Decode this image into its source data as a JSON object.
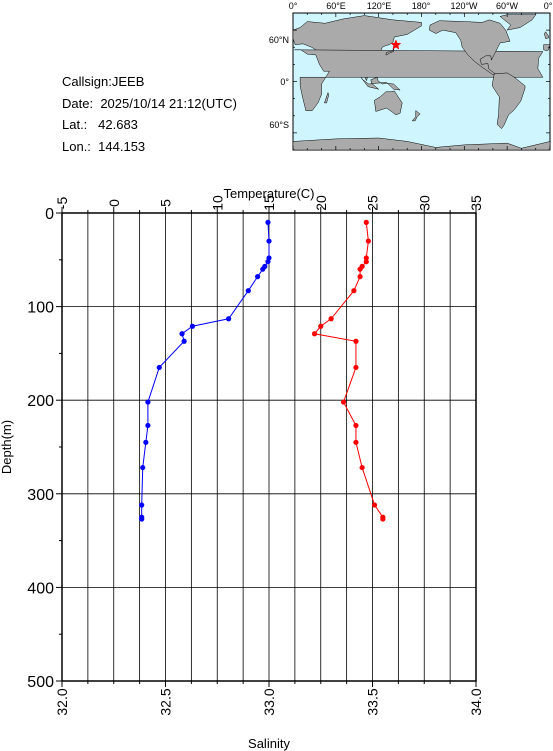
{
  "station": {
    "callsign_label": "Callsign:",
    "callsign": "JEEB",
    "date_label": "Date:",
    "date": "2025/10/14 21:12(UTC)",
    "lat_label": "Lat.:",
    "lat": "42.683",
    "lon_label": "Lon.:",
    "lon": "144.153"
  },
  "map": {
    "lon_labels": [
      "0°",
      "60°E",
      "120°E",
      "180°",
      "120°W",
      "60°W",
      "0°"
    ],
    "lat_labels": [
      "60°N",
      "0°",
      "60°S"
    ],
    "marker_lon": 144.153,
    "marker_lat": 42.683,
    "marker_color": "#ff0000",
    "ocean_color": "#cff5ff",
    "land_color": "#aaaaaa"
  },
  "chart_data": {
    "type": "line",
    "ylabel": "Depth(m)",
    "ylim": [
      0,
      500
    ],
    "y_ticks": [
      "0",
      "100",
      "200",
      "300",
      "400",
      "500"
    ],
    "grid": true,
    "temperature_axis": {
      "label": "Temperature(C)",
      "range": [
        -5,
        35
      ],
      "ticks": [
        "-5",
        "0",
        "5",
        "10",
        "15",
        "20",
        "25",
        "30",
        "35"
      ]
    },
    "salinity_axis": {
      "label": "Salinity",
      "range": [
        32.0,
        34.0
      ],
      "ticks": [
        "32.0",
        "32.5",
        "33.0",
        "33.5",
        "34.0"
      ]
    },
    "series": [
      {
        "color": "#0000ff",
        "axis": "temperature",
        "points": [
          [
            14.9,
            10
          ],
          [
            15.0,
            30
          ],
          [
            15.0,
            48
          ],
          [
            14.9,
            52
          ],
          [
            14.6,
            57
          ],
          [
            14.4,
            60
          ],
          [
            13.9,
            68
          ],
          [
            13.0,
            83
          ],
          [
            11.1,
            113
          ],
          [
            7.6,
            121
          ],
          [
            6.6,
            129
          ],
          [
            6.8,
            137
          ],
          [
            4.4,
            165
          ],
          [
            3.3,
            202
          ],
          [
            3.3,
            227
          ],
          [
            3.1,
            245
          ],
          [
            2.8,
            272
          ],
          [
            2.7,
            312
          ],
          [
            2.7,
            325
          ],
          [
            2.7,
            327
          ]
        ]
      },
      {
        "color": "#ff0000",
        "axis": "salinity",
        "points": [
          [
            33.47,
            10
          ],
          [
            33.48,
            30
          ],
          [
            33.47,
            48
          ],
          [
            33.47,
            52
          ],
          [
            33.45,
            57
          ],
          [
            33.44,
            60
          ],
          [
            33.44,
            68
          ],
          [
            33.41,
            83
          ],
          [
            33.3,
            113
          ],
          [
            33.25,
            121
          ],
          [
            33.22,
            129
          ],
          [
            33.42,
            137
          ],
          [
            33.42,
            165
          ],
          [
            33.36,
            202
          ],
          [
            33.42,
            227
          ],
          [
            33.42,
            245
          ],
          [
            33.45,
            272
          ],
          [
            33.51,
            312
          ],
          [
            33.55,
            325
          ],
          [
            33.55,
            327
          ]
        ]
      }
    ]
  }
}
